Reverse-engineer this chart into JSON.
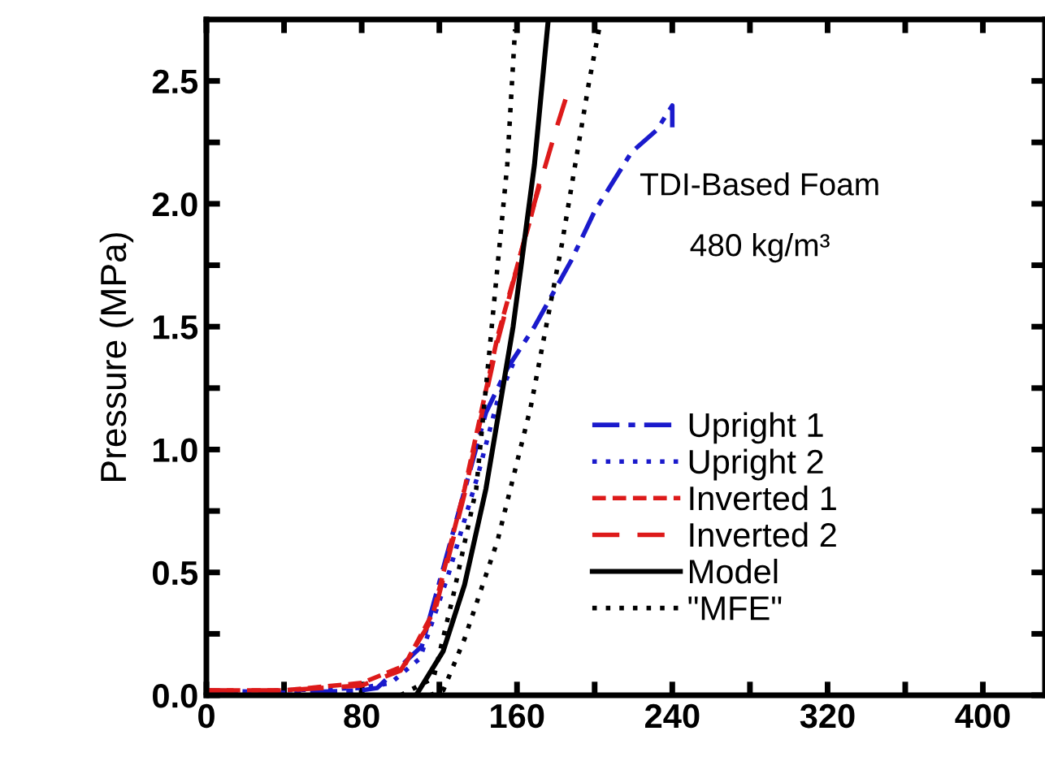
{
  "chart_data": {
    "type": "line",
    "ylabel": "Pressure (MPa)",
    "annotations": [
      "TDI-Based Foam",
      "480 kg/m³"
    ],
    "xlim": [
      0,
      432
    ],
    "ylim": [
      0,
      2.75
    ],
    "xticks": [
      0,
      {
        "value": 40,
        "label": null
      },
      80,
      {
        "value": 120,
        "label": null
      },
      160,
      {
        "value": 200,
        "label": null
      },
      240,
      {
        "value": 280,
        "label": null
      },
      320,
      {
        "value": 360,
        "label": null
      },
      400
    ],
    "yticks": [
      "0.0",
      {
        "value": 0.25,
        "label": null
      },
      {
        "value": 0.5,
        "label": "0.5"
      },
      {
        "value": 0.75,
        "label": null
      },
      {
        "value": 1.0,
        "label": "1.0"
      },
      {
        "value": 1.25,
        "label": null
      },
      {
        "value": 1.5,
        "label": "1.5"
      },
      {
        "value": 1.75,
        "label": null
      },
      {
        "value": 2.0,
        "label": "2.0"
      },
      {
        "value": 2.25,
        "label": null
      },
      {
        "value": 2.5,
        "label": "2.5"
      }
    ],
    "grid": false,
    "legend": "right",
    "series": [
      {
        "name": "Upright 1",
        "color": "#1a1acc",
        "line_style": "dashdot",
        "x": [
          0,
          40,
          80,
          88,
          111,
          128,
          144,
          155,
          169,
          188,
          200,
          219,
          232,
          240,
          240
        ],
        "values": [
          0.02,
          0.01,
          0.02,
          0.03,
          0.2,
          0.69,
          1.15,
          1.33,
          1.5,
          1.77,
          1.97,
          2.21,
          2.3,
          2.4,
          2.3
        ]
      },
      {
        "name": "Upright 2",
        "color": "#1a1acc",
        "line_style": "dotted",
        "x": [
          0,
          40,
          80,
          95,
          110,
          125,
          140,
          150,
          158
        ],
        "values": [
          0.01,
          0.02,
          0.03,
          0.05,
          0.15,
          0.5,
          0.9,
          1.2,
          1.35
        ]
      },
      {
        "name": "Inverted 1",
        "color": "#dd1a1a",
        "line_style": "dashed",
        "x": [
          0,
          40,
          80,
          102,
          117,
          133,
          150,
          167,
          172
        ],
        "values": [
          0.02,
          0.02,
          0.05,
          0.12,
          0.34,
          0.84,
          1.46,
          1.94,
          2.1
        ]
      },
      {
        "name": "Inverted 2",
        "color": "#dd1a1a",
        "line_style": "longdash",
        "x": [
          0,
          40,
          80,
          100,
          117,
          133,
          150,
          167,
          180,
          186
        ],
        "values": [
          0.02,
          0.02,
          0.04,
          0.1,
          0.32,
          0.82,
          1.44,
          1.95,
          2.3,
          2.45
        ]
      },
      {
        "name": "Model",
        "color": "#000000",
        "line_style": "solid",
        "x": [
          108,
          122,
          133,
          144,
          158,
          169,
          176
        ],
        "values": [
          0,
          0.18,
          0.45,
          0.84,
          1.5,
          2.16,
          2.74
        ]
      },
      {
        "name": "\"MFE\"",
        "color": "#000000",
        "line_style": "dotted",
        "x": [
          100,
          117,
          127,
          139,
          147,
          155,
          159
        ],
        "values": [
          0,
          0.07,
          0.4,
          0.84,
          1.5,
          2.16,
          2.71
        ]
      },
      {
        "color": "#000000",
        "line_style": "dotted",
        "x": [
          115,
          122,
          133,
          150,
          167,
          183,
          197,
          203
        ],
        "values": [
          0,
          0.02,
          0.23,
          0.63,
          1.17,
          1.83,
          2.49,
          2.74
        ]
      }
    ]
  }
}
